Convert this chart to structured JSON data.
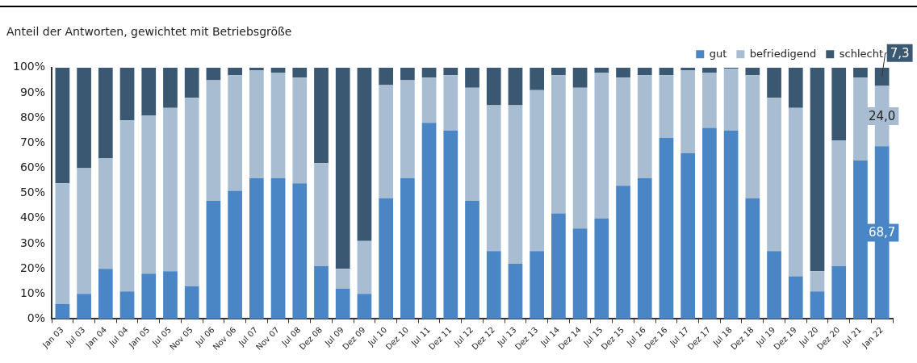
{
  "chart_data": {
    "type": "bar",
    "stacked": true,
    "title": "Anteil der Antworten, gewichtet mit Betriebsgröße",
    "categories": [
      "Jan 03",
      "Jul 03",
      "Jan 04",
      "Jul 04",
      "Jan 05",
      "Jul 05",
      "Nov 05",
      "Jul 06",
      "Nov 06",
      "Jul 07",
      "Nov 07",
      "Jul 08",
      "Dez 08",
      "Jul 09",
      "Dez 09",
      "Jul 10",
      "Dez 10",
      "Jul 11",
      "Dez 11",
      "Jul 12",
      "Dez 12",
      "Jul 13",
      "Dez 13",
      "Jul 14",
      "Dez 14",
      "Jul 15",
      "Dez 15",
      "Jul 16",
      "Dez 16",
      "Jul 17",
      "Dez 17",
      "Jul 18",
      "Dez 18",
      "Jul 19",
      "Dez 19",
      "Jul 20",
      "Dez 20",
      "Jul 21",
      "Jan 22"
    ],
    "series": [
      {
        "name": "gut",
        "color": "#4a86c5",
        "values": [
          6,
          10,
          20,
          11,
          18,
          19,
          13,
          47,
          51,
          56,
          56,
          54,
          21,
          12,
          10,
          48,
          56,
          78,
          75,
          47,
          27,
          22,
          27,
          42,
          36,
          40,
          53,
          56,
          72,
          66,
          76,
          75,
          48,
          27,
          17,
          11,
          21,
          63,
          68.7
        ],
        "value_labels": [
          null,
          null,
          null,
          null,
          null,
          null,
          null,
          null,
          null,
          null,
          null,
          null,
          null,
          null,
          null,
          null,
          null,
          null,
          null,
          null,
          null,
          null,
          null,
          null,
          null,
          null,
          null,
          null,
          null,
          null,
          null,
          null,
          null,
          null,
          null,
          null,
          null,
          null,
          "68,7"
        ]
      },
      {
        "name": "befriedigend",
        "color": "#a8bdd1",
        "values": [
          48,
          50,
          44,
          68,
          63,
          65,
          75,
          48,
          46,
          43,
          42,
          42,
          41,
          8,
          21,
          45,
          39,
          18,
          22,
          45,
          58,
          63,
          64,
          55,
          56,
          58,
          43,
          41,
          25,
          33,
          22,
          24.5,
          49,
          61,
          67,
          8,
          50,
          33,
          24.0
        ],
        "value_labels": [
          null,
          null,
          null,
          null,
          null,
          null,
          null,
          null,
          null,
          null,
          null,
          null,
          null,
          null,
          null,
          null,
          null,
          null,
          null,
          null,
          null,
          null,
          null,
          null,
          null,
          null,
          null,
          null,
          null,
          null,
          null,
          null,
          null,
          null,
          null,
          null,
          null,
          null,
          "24,0"
        ]
      },
      {
        "name": "schlecht",
        "color": "#3b5873",
        "values": [
          46,
          40,
          36,
          21,
          19,
          16,
          12,
          5,
          3,
          1,
          2,
          4,
          38,
          80,
          69,
          7,
          5,
          4,
          3,
          8,
          15,
          15,
          9,
          3,
          8,
          2,
          4,
          3,
          3,
          1,
          2,
          0.5,
          3,
          12,
          16,
          81,
          29,
          4,
          7.3
        ],
        "value_labels": [
          null,
          null,
          null,
          null,
          null,
          null,
          null,
          null,
          null,
          null,
          null,
          null,
          null,
          null,
          null,
          null,
          null,
          null,
          null,
          null,
          null,
          null,
          null,
          null,
          null,
          null,
          null,
          null,
          null,
          null,
          null,
          null,
          null,
          null,
          null,
          null,
          null,
          null,
          "7,3"
        ]
      }
    ],
    "ylim": [
      0,
      100
    ],
    "yticks": [
      {
        "value": 0,
        "label": "0%"
      },
      {
        "value": 10,
        "label": "10%"
      },
      {
        "value": 20,
        "label": "20%"
      },
      {
        "value": 30,
        "label": "30%"
      },
      {
        "value": 40,
        "label": "40%"
      },
      {
        "value": 50,
        "label": "50%"
      },
      {
        "value": 60,
        "label": "60%"
      },
      {
        "value": 70,
        "label": "70%"
      },
      {
        "value": 80,
        "label": "80%"
      },
      {
        "value": 90,
        "label": "90%"
      },
      {
        "value": 100,
        "label": "100%"
      }
    ],
    "grid": false,
    "legend": "top right"
  }
}
